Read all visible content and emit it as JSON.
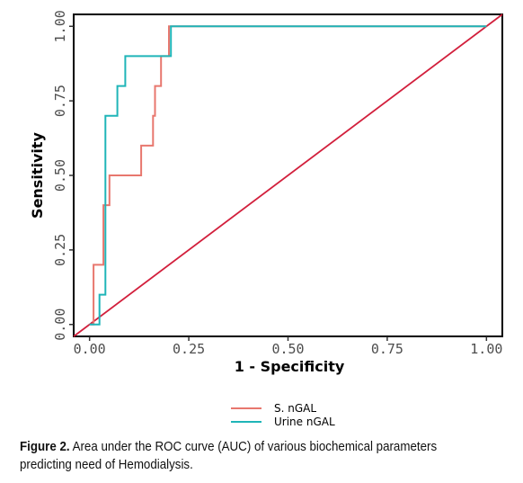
{
  "chart_data": {
    "type": "line",
    "xlabel": "1 - Specificity",
    "ylabel": "Sensitivity",
    "xlim": [
      -0.04,
      1.04
    ],
    "ylim": [
      -0.04,
      1.04
    ],
    "x_ticks": [
      0.0,
      0.25,
      0.5,
      0.75,
      1.0
    ],
    "x_tick_labels": [
      "0.00",
      "0.25",
      "0.50",
      "0.75",
      "1.00"
    ],
    "y_ticks": [
      0.0,
      0.25,
      0.5,
      0.75,
      1.0
    ],
    "y_tick_labels": [
      "0.00",
      "0.25",
      "0.50",
      "0.75",
      "1.00"
    ],
    "grid": false,
    "legend_position": "bottom-center",
    "series": [
      {
        "name": "S. nGAL",
        "color": "#e8776e",
        "points": [
          [
            0.0,
            0.0
          ],
          [
            0.01,
            0.0
          ],
          [
            0.01,
            0.2
          ],
          [
            0.035,
            0.2
          ],
          [
            0.035,
            0.4
          ],
          [
            0.05,
            0.4
          ],
          [
            0.05,
            0.5
          ],
          [
            0.13,
            0.5
          ],
          [
            0.13,
            0.6
          ],
          [
            0.16,
            0.6
          ],
          [
            0.16,
            0.7
          ],
          [
            0.165,
            0.7
          ],
          [
            0.165,
            0.8
          ],
          [
            0.18,
            0.8
          ],
          [
            0.18,
            0.9
          ],
          [
            0.2,
            0.9
          ],
          [
            0.2,
            1.0
          ],
          [
            1.0,
            1.0
          ]
        ]
      },
      {
        "name": "Urine nGAL",
        "color": "#1fb5b8",
        "points": [
          [
            0.0,
            0.0
          ],
          [
            0.025,
            0.0
          ],
          [
            0.025,
            0.1
          ],
          [
            0.04,
            0.1
          ],
          [
            0.04,
            0.7
          ],
          [
            0.07,
            0.7
          ],
          [
            0.07,
            0.8
          ],
          [
            0.09,
            0.8
          ],
          [
            0.09,
            0.9
          ],
          [
            0.205,
            0.9
          ],
          [
            0.205,
            1.0
          ],
          [
            1.0,
            1.0
          ]
        ]
      },
      {
        "name": "",
        "color": "#d21f3c",
        "points": [
          [
            -0.04,
            -0.04
          ],
          [
            1.04,
            1.04
          ]
        ]
      }
    ]
  },
  "caption": {
    "label": "Figure 2.",
    "text": " Area under the ROC curve (AUC) of various biochemical parameters predicting need of Hemodialysis."
  }
}
